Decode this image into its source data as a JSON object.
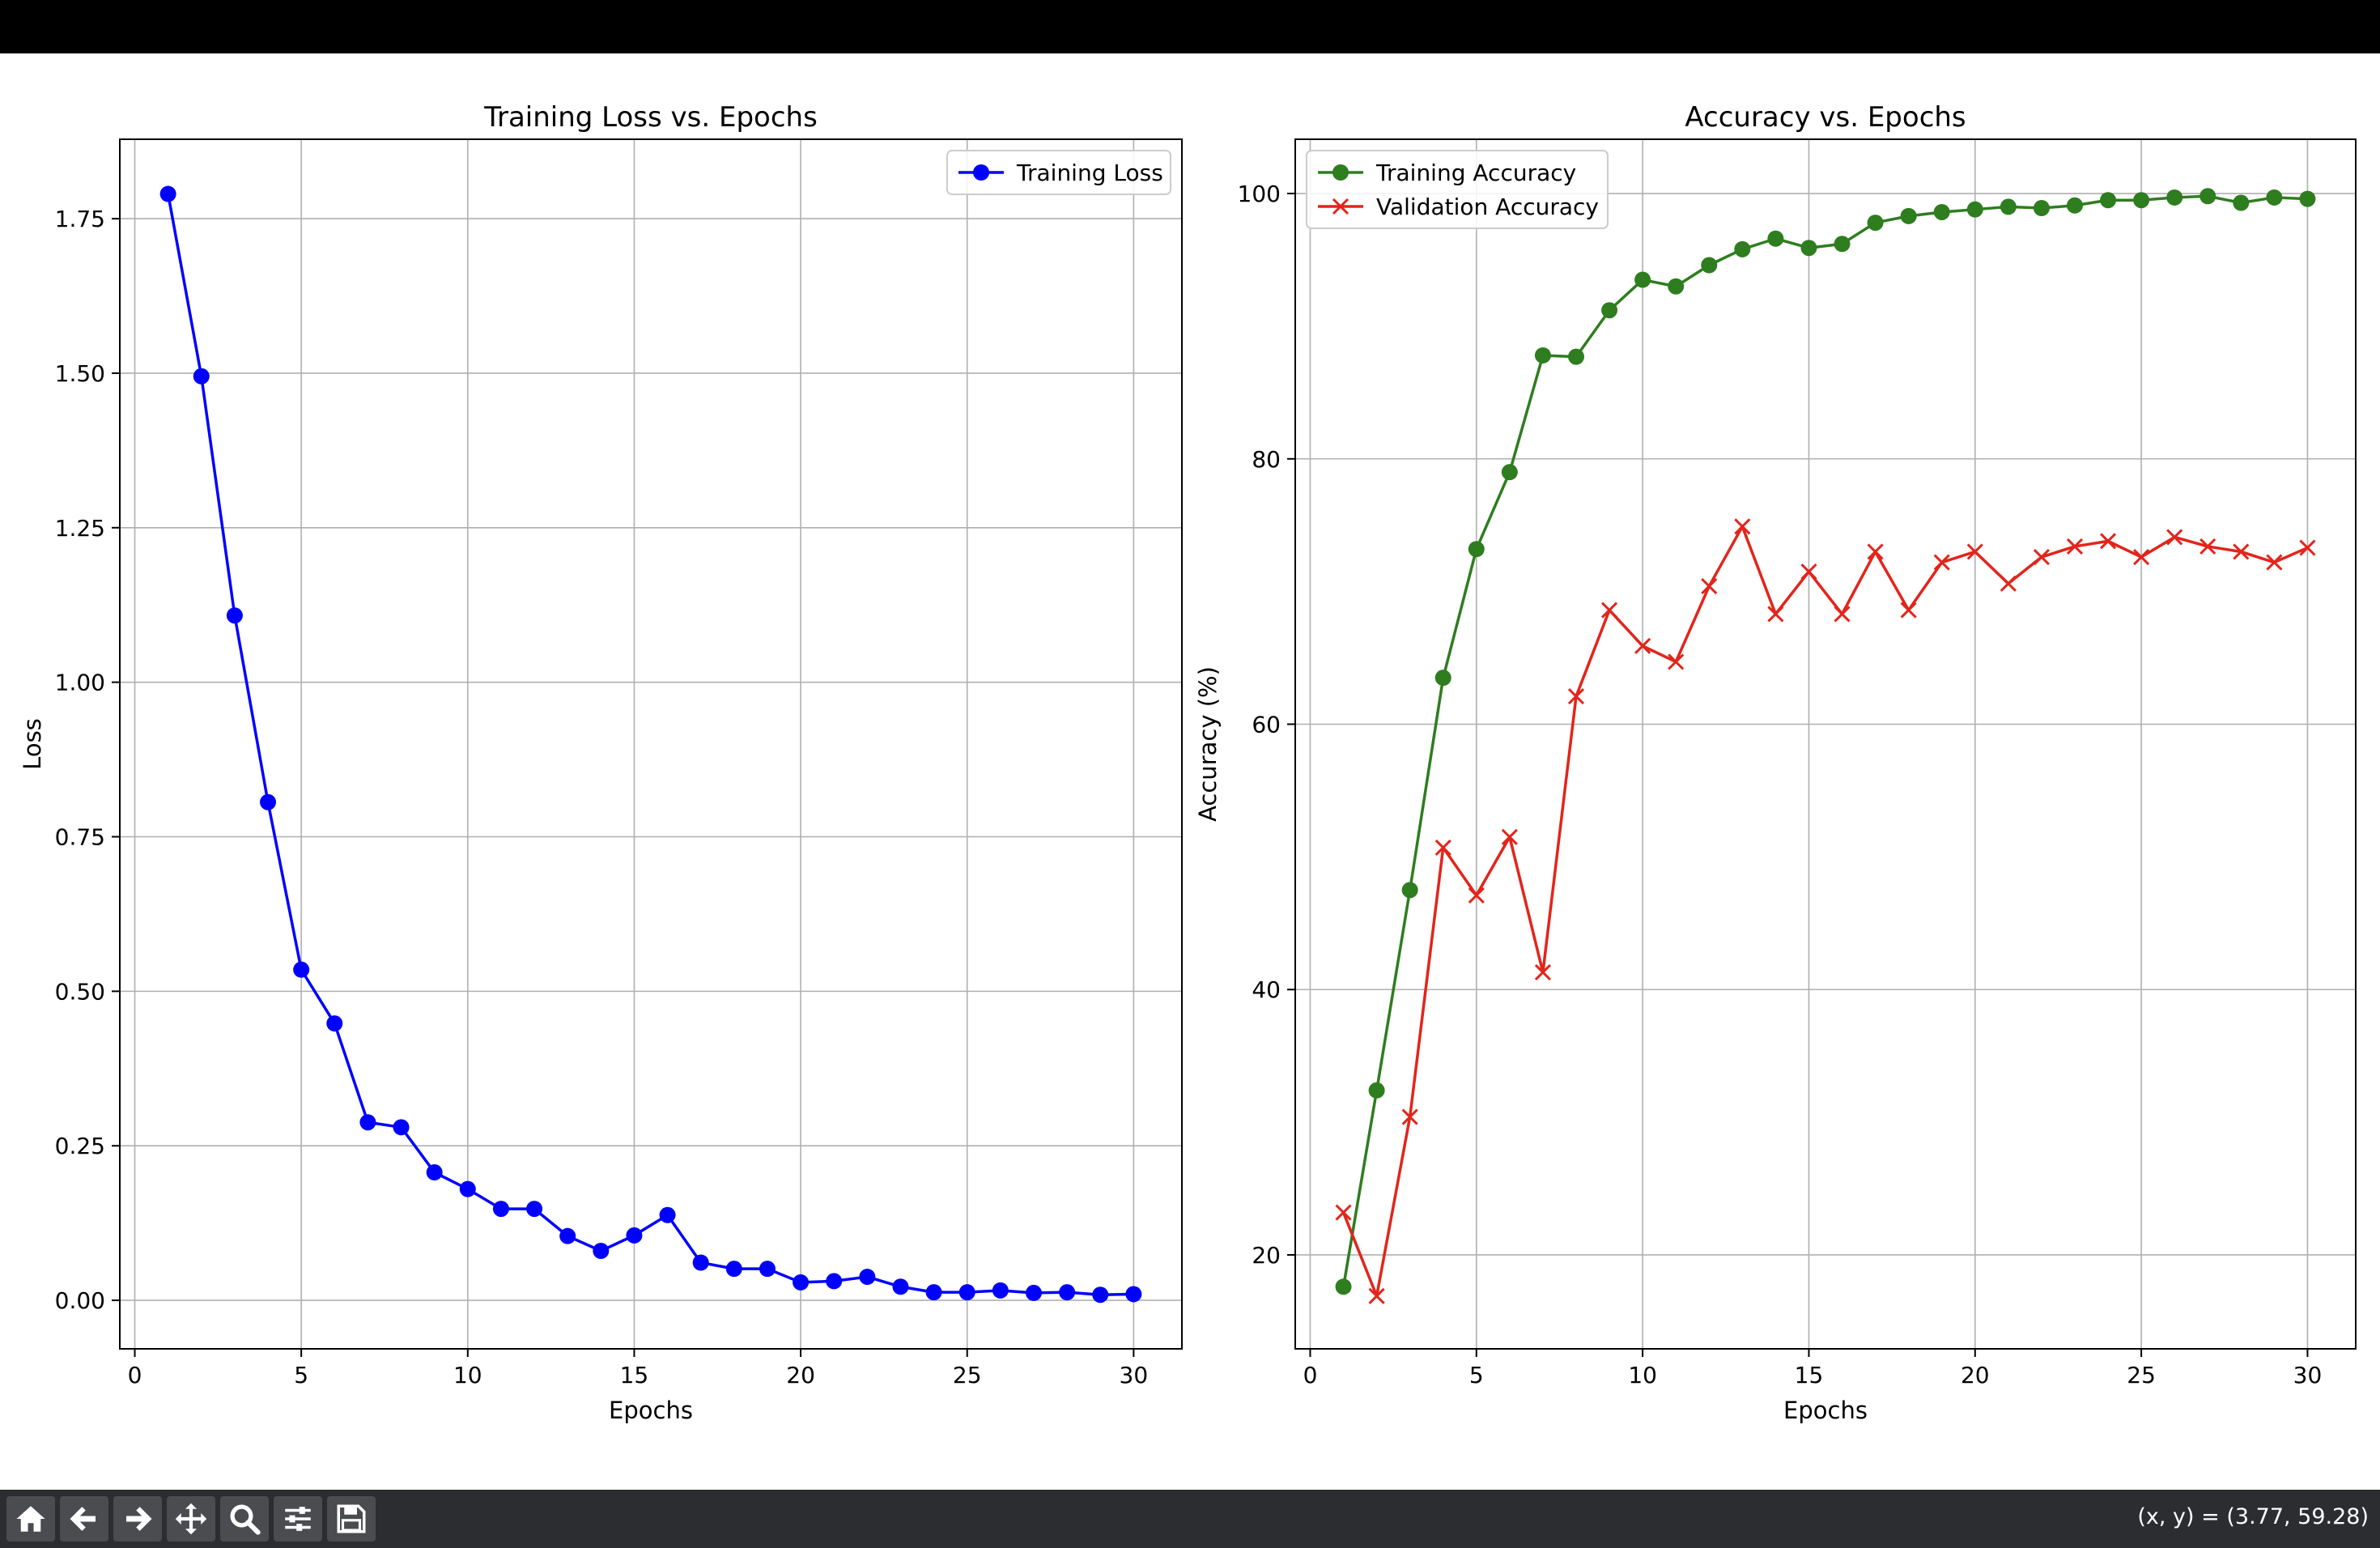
{
  "window": {
    "title": ""
  },
  "chart_data": [
    {
      "type": "line",
      "title": "Training Loss vs. Epochs",
      "xlabel": "Epochs",
      "ylabel": "Loss",
      "xlim": [
        -0.45,
        31.45
      ],
      "ylim": [
        -0.0785,
        1.8785
      ],
      "xticks": [
        0,
        5,
        10,
        15,
        20,
        25,
        30
      ],
      "xtick_labels": [
        "0",
        "5",
        "10",
        "15",
        "20",
        "25",
        "30"
      ],
      "yticks": [
        0.0,
        0.25,
        0.5,
        0.75,
        1.0,
        1.25,
        1.5,
        1.75
      ],
      "ytick_labels": [
        "0.00",
        "0.25",
        "0.50",
        "0.75",
        "1.00",
        "1.25",
        "1.50",
        "1.75"
      ],
      "grid": true,
      "legend_position": "upper right",
      "x": [
        1,
        2,
        3,
        4,
        5,
        6,
        7,
        8,
        9,
        10,
        11,
        12,
        13,
        14,
        15,
        16,
        17,
        18,
        19,
        20,
        21,
        22,
        23,
        24,
        25,
        26,
        27,
        28,
        29,
        30
      ],
      "series": [
        {
          "name": "Training Loss",
          "color": "#0000ff",
          "marker": "circle",
          "values": [
            1.79,
            1.495,
            1.108,
            0.806,
            0.535,
            0.448,
            0.288,
            0.28,
            0.207,
            0.18,
            0.148,
            0.148,
            0.104,
            0.08,
            0.105,
            0.138,
            0.061,
            0.051,
            0.051,
            0.029,
            0.031,
            0.038,
            0.022,
            0.013,
            0.013,
            0.016,
            0.012,
            0.013,
            0.009,
            0.01
          ]
        }
      ]
    },
    {
      "type": "line",
      "title": "Accuracy vs. Epochs",
      "xlabel": "Epochs",
      "ylabel": "Accuracy (%)",
      "xlim": [
        -0.45,
        31.45
      ],
      "ylim": [
        12.92,
        104.09
      ],
      "xticks": [
        0,
        5,
        10,
        15,
        20,
        25,
        30
      ],
      "xtick_labels": [
        "0",
        "5",
        "10",
        "15",
        "20",
        "25",
        "30"
      ],
      "yticks": [
        20,
        40,
        60,
        80,
        100
      ],
      "ytick_labels": [
        "20",
        "40",
        "60",
        "80",
        "100"
      ],
      "grid": true,
      "legend_position": "upper left",
      "x": [
        1,
        2,
        3,
        4,
        5,
        6,
        7,
        8,
        9,
        10,
        11,
        12,
        13,
        14,
        15,
        16,
        17,
        18,
        19,
        20,
        21,
        22,
        23,
        24,
        25,
        26,
        27,
        28,
        29,
        30
      ],
      "series": [
        {
          "name": "Training Accuracy",
          "color": "#2e7d1f",
          "marker": "circle",
          "values": [
            17.6,
            32.4,
            47.5,
            63.5,
            73.2,
            79.0,
            87.8,
            87.7,
            91.2,
            93.5,
            93.0,
            94.6,
            95.8,
            96.6,
            95.9,
            96.2,
            97.8,
            98.3,
            98.6,
            98.8,
            99.0,
            98.9,
            99.1,
            99.5,
            99.5,
            99.7,
            99.8,
            99.3,
            99.7,
            99.6
          ]
        },
        {
          "name": "Validation Accuracy",
          "color": "#e3241b",
          "marker": "x",
          "values": [
            23.2,
            16.9,
            30.4,
            50.7,
            47.1,
            51.5,
            41.3,
            62.1,
            68.6,
            65.9,
            64.7,
            70.4,
            74.9,
            68.3,
            71.5,
            68.3,
            73.0,
            68.6,
            72.2,
            73.0,
            70.6,
            72.6,
            73.4,
            73.8,
            72.6,
            74.1,
            73.4,
            73.0,
            72.2,
            73.3
          ]
        }
      ]
    }
  ],
  "toolbar": {
    "buttons": [
      {
        "icon": "home-icon"
      },
      {
        "icon": "back-arrow-icon"
      },
      {
        "icon": "forward-arrow-icon"
      },
      {
        "icon": "pan-icon"
      },
      {
        "icon": "zoom-icon"
      },
      {
        "icon": "configure-subplots-icon"
      },
      {
        "icon": "save-icon"
      }
    ],
    "coordinate_readout": "(x, y) = (3.77, 59.28)"
  }
}
